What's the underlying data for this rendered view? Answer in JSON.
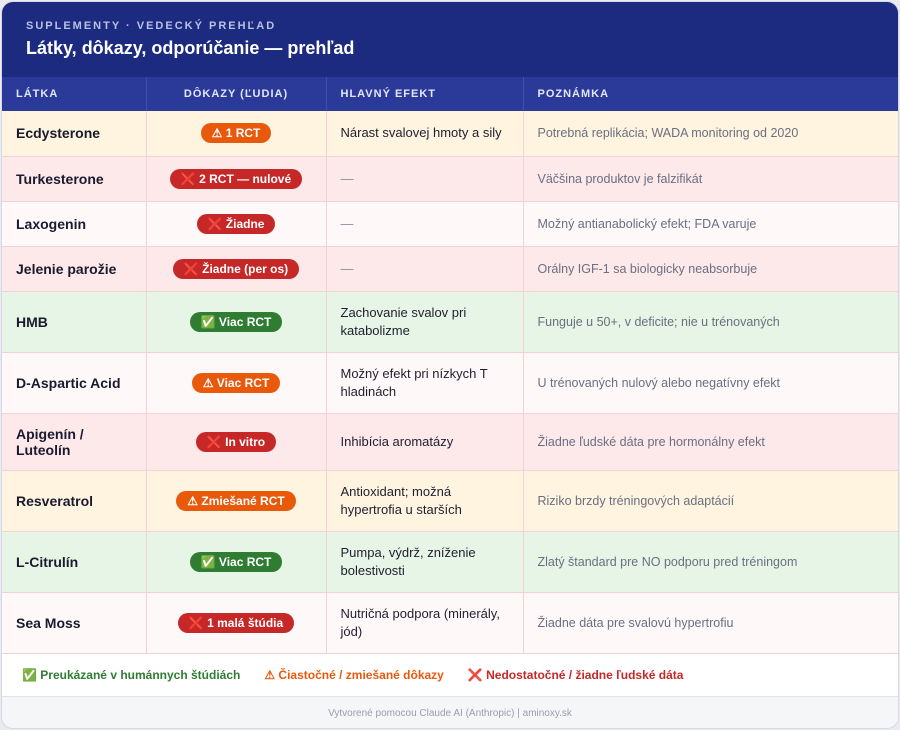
{
  "header": {
    "kicker": "SUPLEMENTY · VEDECKÝ PREHĽAD",
    "title": "Látky, dôkazy, odporúčanie — prehľad"
  },
  "columns": [
    "LÁTKA",
    "DÔKAZY (ĽUDIA)",
    "HLAVNÝ EFEKT",
    "POZNÁMKA"
  ],
  "rows": [
    {
      "name": "Ecdysterone",
      "badge": "⚠ 1 RCT",
      "badge_color": "orange",
      "effect": "Nárast svalovej hmoty a sily",
      "note": "Potrebná replikácia; WADA monitoring od 2020",
      "bg": "yellow"
    },
    {
      "name": "Turkesterone",
      "badge": "❌ 2 RCT — nulové",
      "badge_color": "red",
      "effect": "—",
      "note": "Väčšina produktov je falzifikát",
      "bg": "pink"
    },
    {
      "name": "Laxogenin",
      "badge": "❌ Žiadne",
      "badge_color": "red",
      "effect": "—",
      "note": "Možný antianabolický efekt; FDA varuje",
      "bg": "white"
    },
    {
      "name": "Jelenie parožie",
      "badge": "❌ Žiadne (per os)",
      "badge_color": "red",
      "effect": "—",
      "note": "Orálny IGF-1 sa biologicky neabsorbuje",
      "bg": "pink"
    },
    {
      "name": "HMB",
      "badge": "✅ Viac RCT",
      "badge_color": "green",
      "effect": "Zachovanie svalov pri katabolizme",
      "note": "Funguje u 50+, v deficite; nie u trénovaných",
      "bg": "green"
    },
    {
      "name": "D-Aspartic Acid",
      "badge": "⚠ Viac RCT",
      "badge_color": "orange",
      "effect": "Možný efekt pri nízkych T hladinách",
      "note": "U trénovaných nulový alebo negatívny efekt",
      "bg": "white"
    },
    {
      "name": "Apigenín / Luteolín",
      "badge": "❌ In vitro",
      "badge_color": "red",
      "effect": "Inhibícia aromatázy",
      "note": "Žiadne ľudské dáta pre hormonálny efekt",
      "bg": "pink"
    },
    {
      "name": "Resveratrol",
      "badge": "⚠ Zmiešané RCT",
      "badge_color": "orange",
      "effect": "Antioxidant; možná hypertrofia u starších",
      "note": "Riziko brzdy tréningových adaptácií",
      "bg": "yellow"
    },
    {
      "name": "L-Citrulín",
      "badge": "✅ Viac RCT",
      "badge_color": "green",
      "effect": "Pumpa, výdrž, zníženie bolestivosti",
      "note": "Zlatý štandard pre NO podporu pred tréningom",
      "bg": "green"
    },
    {
      "name": "Sea Moss",
      "badge": "❌ 1 malá štúdia",
      "badge_color": "red",
      "effect": "Nutričná podpora (minerály, jód)",
      "note": "Žiadne dáta pre svalovú hypertrofiu",
      "bg": "white"
    }
  ],
  "legend": {
    "green": "✅ Preukázané v humánnych štúdiách",
    "orange": "⚠ Čiastočné / zmiešané dôkazy",
    "red": "❌ Nedostatočné / žiadne ľudské dáta"
  },
  "footer": "Vytvorené pomocou Claude AI (Anthropic) | aminoxy.sk",
  "colors": {
    "header_bg": "#1c2b7f",
    "th_bg": "#2b3a98",
    "green": "#2e7d32",
    "orange": "#e8590c",
    "red": "#c62828"
  }
}
